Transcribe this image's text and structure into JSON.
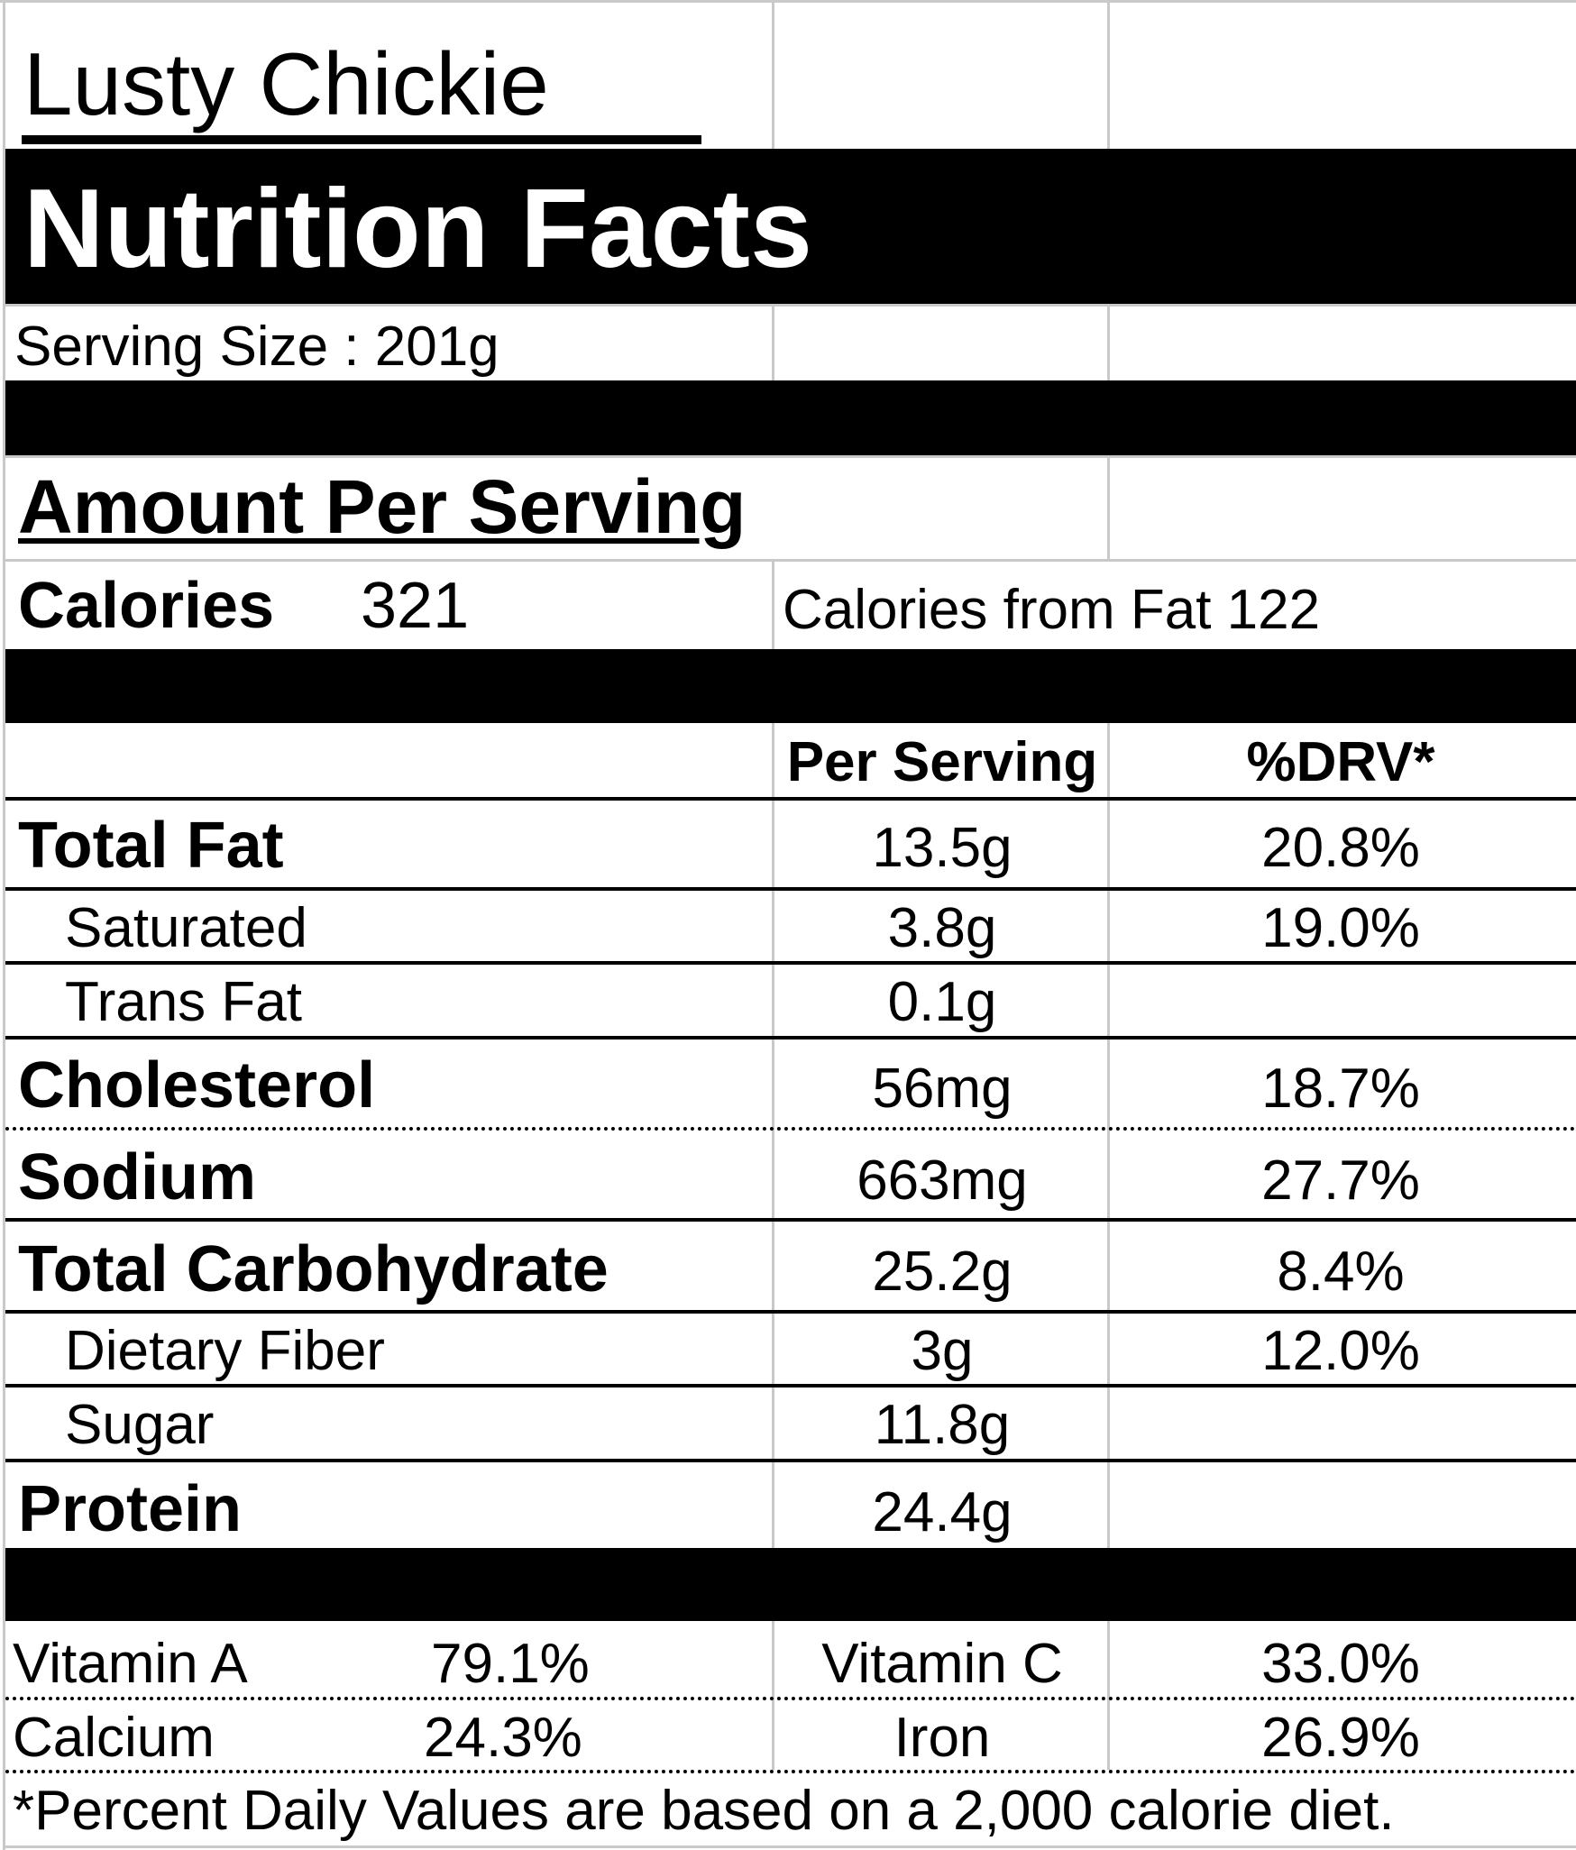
{
  "product_name": "Lusty Chickie",
  "header": "Nutrition Facts",
  "serving_size": "Serving Size  : 201g",
  "amount_per_serving": "Amount Per Serving",
  "calories_label": "Calories",
  "calories_value": "321",
  "calories_from_fat": "Calories from Fat  122",
  "columns": {
    "per_serving": "Per Serving",
    "drv": "%DRV*"
  },
  "nutrients": [
    {
      "name": "Total Fat",
      "amount": "13.5g",
      "drv": "20.8%"
    },
    {
      "name": "Saturated",
      "amount": "3.8g",
      "drv": "19.0%"
    },
    {
      "name": "Trans Fat",
      "amount": "0.1g",
      "drv": ""
    },
    {
      "name": "Cholesterol",
      "amount": "56mg",
      "drv": "18.7%"
    },
    {
      "name": "Sodium",
      "amount": "663mg",
      "drv": "27.7%"
    },
    {
      "name": "Total Carbohydrate",
      "amount": "25.2g",
      "drv": "8.4%"
    },
    {
      "name": "Dietary Fiber",
      "amount": "3g",
      "drv": "12.0%"
    },
    {
      "name": "Sugar",
      "amount": "11.8g",
      "drv": ""
    },
    {
      "name": "Protein",
      "amount": "24.4g",
      "drv": ""
    }
  ],
  "vitamins": [
    {
      "left_name": "Vitamin A",
      "left_value": "79.1%",
      "right_name": "Vitamin C",
      "right_value": "33.0%"
    },
    {
      "left_name": "Calcium",
      "left_value": "24.3%",
      "right_name": "Iron",
      "right_value": "26.9%"
    }
  ],
  "footnote": "*Percent Daily Values are based on a 2,000 calorie diet."
}
